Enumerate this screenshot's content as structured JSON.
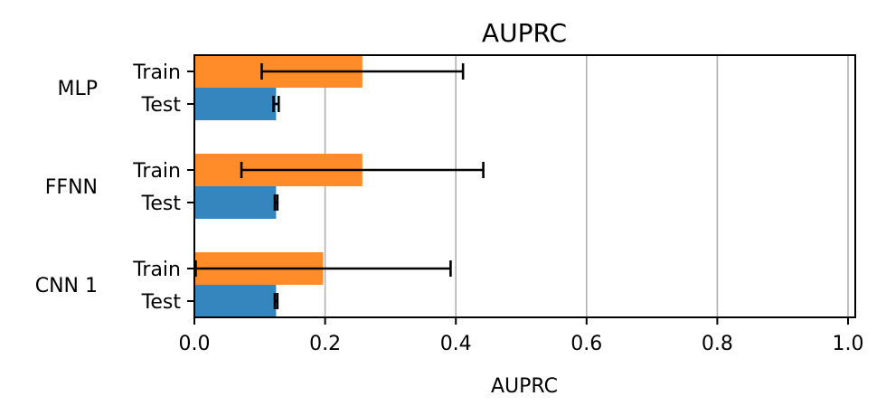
{
  "chart_data": {
    "type": "bar",
    "orientation": "horizontal",
    "title": "AUPRC",
    "xlabel": "AUPRC",
    "ylabel": "",
    "xlim": [
      0,
      1.0
    ],
    "xticks": [
      "0.0",
      "0.2",
      "0.4",
      "0.6",
      "0.8",
      "1.0"
    ],
    "grid": "vertical",
    "groups": [
      "MLP",
      "FFNN",
      "CNN 1"
    ],
    "series": [
      {
        "name": "Train",
        "color": "#ff8c28",
        "values": [
          0.257,
          0.257,
          0.197
        ],
        "errors": [
          0.154,
          0.185,
          0.195
        ]
      },
      {
        "name": "Test",
        "color": "#3585bf",
        "values": [
          0.125,
          0.125,
          0.125
        ],
        "errors": [
          0.004,
          0.002,
          0.002
        ]
      }
    ]
  }
}
